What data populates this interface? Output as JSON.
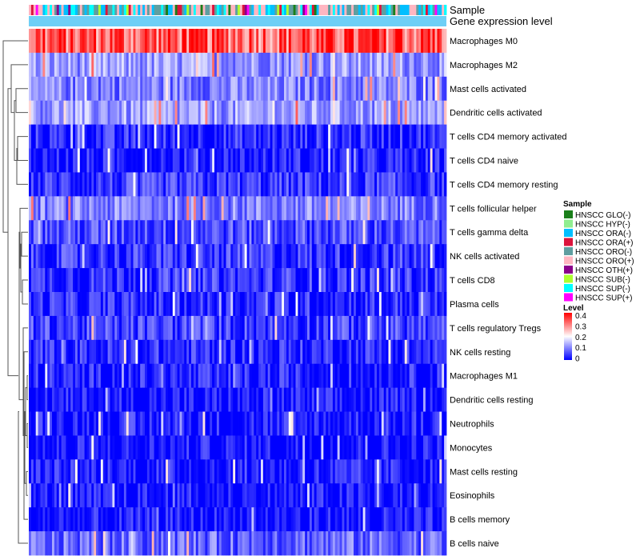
{
  "chart_data": {
    "type": "heatmap",
    "annotation_labels": [
      "Sample",
      "Gene expression level"
    ],
    "rows": [
      "Macrophages M0",
      "Macrophages M2",
      "Mast cells activated",
      "Dendritic cells activated",
      "T cells CD4 memory activated",
      "T cells CD4 naive",
      "T cells CD4 memory resting",
      "T cells follicular helper",
      "T cells gamma delta",
      "NK cells activated",
      "T cells CD8",
      "Plasma cells",
      "T cells regulatory  Tregs",
      "NK cells resting",
      "Macrophages M1",
      "Dendritic cells resting",
      "Neutrophils",
      "Monocytes",
      "Mast cells resting",
      "Eosinophils",
      "B cells memory",
      "B cells naive"
    ],
    "row_mean_level": [
      0.33,
      0.12,
      0.1,
      0.12,
      0.03,
      0.02,
      0.04,
      0.1,
      0.06,
      0.04,
      0.04,
      0.03,
      0.05,
      0.03,
      0.02,
      0.01,
      0.02,
      0.01,
      0.02,
      0.01,
      0.01,
      0.08
    ],
    "n_samples": 180,
    "legend_sample": {
      "title": "Sample",
      "entries": [
        {
          "label": "HNSCC GLO(-)",
          "color": "#1a7f1a"
        },
        {
          "label": "HNSCC HYP(-)",
          "color": "#90ee90"
        },
        {
          "label": "HNSCC ORA(-)",
          "color": "#00bfff"
        },
        {
          "label": "HNSCC ORA(+)",
          "color": "#dc143c"
        },
        {
          "label": "HNSCC ORO(-)",
          "color": "#5f9ea0"
        },
        {
          "label": "HNSCC ORO(+)",
          "color": "#ffb6c1"
        },
        {
          "label": "HNSCC OTH(+)",
          "color": "#8b008b"
        },
        {
          "label": "HNSCC SUB(-)",
          "color": "#adff2f"
        },
        {
          "label": "HNSCC SUP(-)",
          "color": "#00ffff"
        },
        {
          "label": "HNSCC SUP(+)",
          "color": "#ff00ff"
        }
      ]
    },
    "legend_level": {
      "title": "Level",
      "ticks": [
        "0.4",
        "0.3",
        "0.2",
        "0.1",
        "0"
      ],
      "range": [
        0,
        0.4
      ],
      "color_low": "#0000ff",
      "color_mid": "#ffffff",
      "color_high": "#ff0000"
    },
    "expression_bar_color": "#6ecff6",
    "dendrogram": "row-clustered"
  }
}
